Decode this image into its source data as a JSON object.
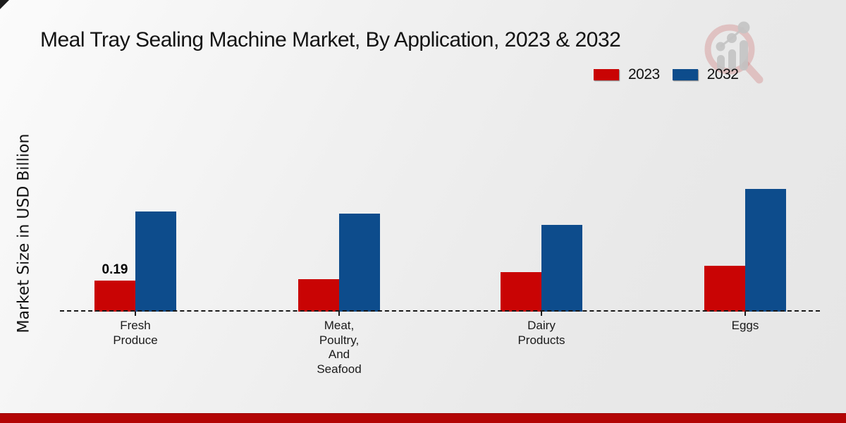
{
  "chart_data": {
    "type": "bar",
    "title": "Meal Tray Sealing Machine Market, By Application, 2023 & 2032",
    "xlabel": "",
    "ylabel": "Market Size in USD Billion",
    "categories": [
      "Fresh\nProduce",
      "Meat,\nPoultry,\nAnd\nSeafood",
      "Dairy\nProducts",
      "Eggs"
    ],
    "series": [
      {
        "name": "2023",
        "color": "#c90404",
        "values": [
          0.19,
          0.2,
          0.24,
          0.28
        ]
      },
      {
        "name": "2032",
        "color": "#0d4c8c",
        "values": [
          0.61,
          0.6,
          0.53,
          0.75
        ]
      }
    ],
    "value_labels": [
      {
        "series": 0,
        "category": 0,
        "text": "0.19"
      }
    ],
    "ylim": [
      0,
      1.3
    ],
    "grid": false,
    "baseline_style": "dashed",
    "legend_position": "top-right"
  },
  "icons": {
    "watermark": "market-research-magnifier-logo"
  },
  "colors": {
    "bar_2023": "#c90404",
    "bar_2032": "#0d4c8c",
    "footer_strip": "#b30505",
    "background": "#ececec"
  }
}
